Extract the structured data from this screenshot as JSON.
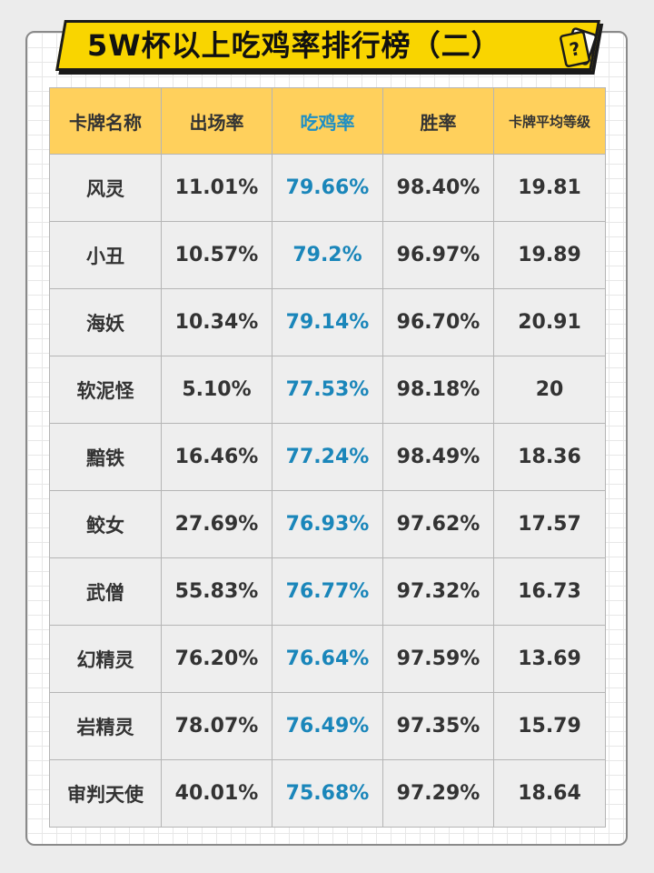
{
  "title": "5W杯以上吃鸡率排行榜（二）",
  "colors": {
    "banner": "#f9d500",
    "header_bg": "#ffd05c",
    "highlight_text": "#1a86ba",
    "cell_bg": "#eeeeee"
  },
  "table": {
    "headers": [
      "卡牌名称",
      "出场率",
      "吃鸡率",
      "胜率",
      "卡牌平均等级"
    ],
    "rows": [
      [
        "风灵",
        "11.01%",
        "79.66%",
        "98.40%",
        "19.81"
      ],
      [
        "小丑",
        "10.57%",
        "79.2%",
        "96.97%",
        "19.89"
      ],
      [
        "海妖",
        "10.34%",
        "79.14%",
        "96.70%",
        "20.91"
      ],
      [
        "软泥怪",
        "5.10%",
        "77.53%",
        "98.18%",
        "20"
      ],
      [
        "黯铁",
        "16.46%",
        "77.24%",
        "98.49%",
        "18.36"
      ],
      [
        "鲛女",
        "27.69%",
        "76.93%",
        "97.62%",
        "17.57"
      ],
      [
        "武僧",
        "55.83%",
        "76.77%",
        "97.32%",
        "16.73"
      ],
      [
        "幻精灵",
        "76.20%",
        "76.64%",
        "97.59%",
        "13.69"
      ],
      [
        "岩精灵",
        "78.07%",
        "76.49%",
        "97.35%",
        "15.79"
      ],
      [
        "审判天使",
        "40.01%",
        "75.68%",
        "97.29%",
        "18.64"
      ]
    ]
  },
  "icons": {
    "title_icon": "question-card-icon"
  }
}
